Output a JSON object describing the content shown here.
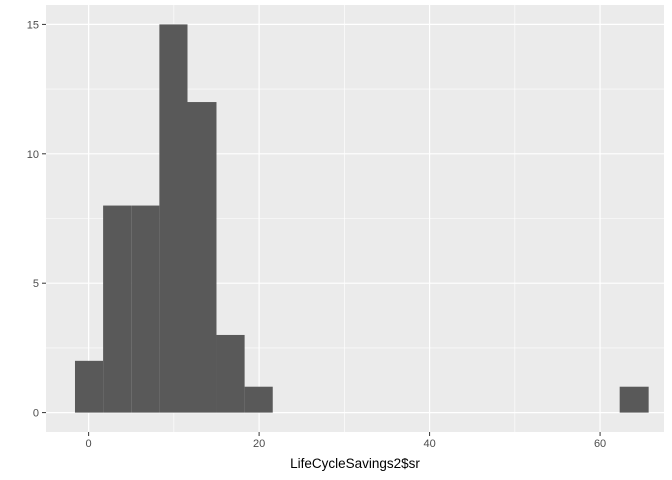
{
  "chart_data": {
    "type": "bar",
    "title": "",
    "xlabel": "LifeCycleSavings2$sr",
    "ylabel": "",
    "bins": [
      {
        "x_start": -1.6,
        "x_end": 1.7,
        "count": 2
      },
      {
        "x_start": 1.7,
        "x_end": 5.0,
        "count": 8
      },
      {
        "x_start": 5.0,
        "x_end": 8.3,
        "count": 8
      },
      {
        "x_start": 8.3,
        "x_end": 11.6,
        "count": 15
      },
      {
        "x_start": 11.6,
        "x_end": 15.0,
        "count": 12
      },
      {
        "x_start": 15.0,
        "x_end": 18.3,
        "count": 3
      },
      {
        "x_start": 18.3,
        "x_end": 21.6,
        "count": 1
      },
      {
        "x_start": 62.3,
        "x_end": 65.7,
        "count": 1
      }
    ],
    "xlim": [
      -5,
      67.5
    ],
    "ylim": [
      -0.75,
      15.75
    ],
    "x_ticks": [
      0,
      20,
      40,
      60
    ],
    "x_tick_labels": [
      "0",
      "20",
      "40",
      "60"
    ],
    "y_ticks": [
      0,
      5,
      10,
      15
    ],
    "y_tick_labels": [
      "0",
      "5",
      "10",
      "15"
    ],
    "x_minor_ticks": [
      10,
      30,
      50
    ],
    "y_minor_ticks": [
      2.5,
      7.5,
      12.5
    ],
    "grid": true,
    "colors": {
      "panel": "#ebebeb",
      "grid": "#ffffff",
      "bar": "#595959",
      "tick_mark": "#333333"
    }
  }
}
